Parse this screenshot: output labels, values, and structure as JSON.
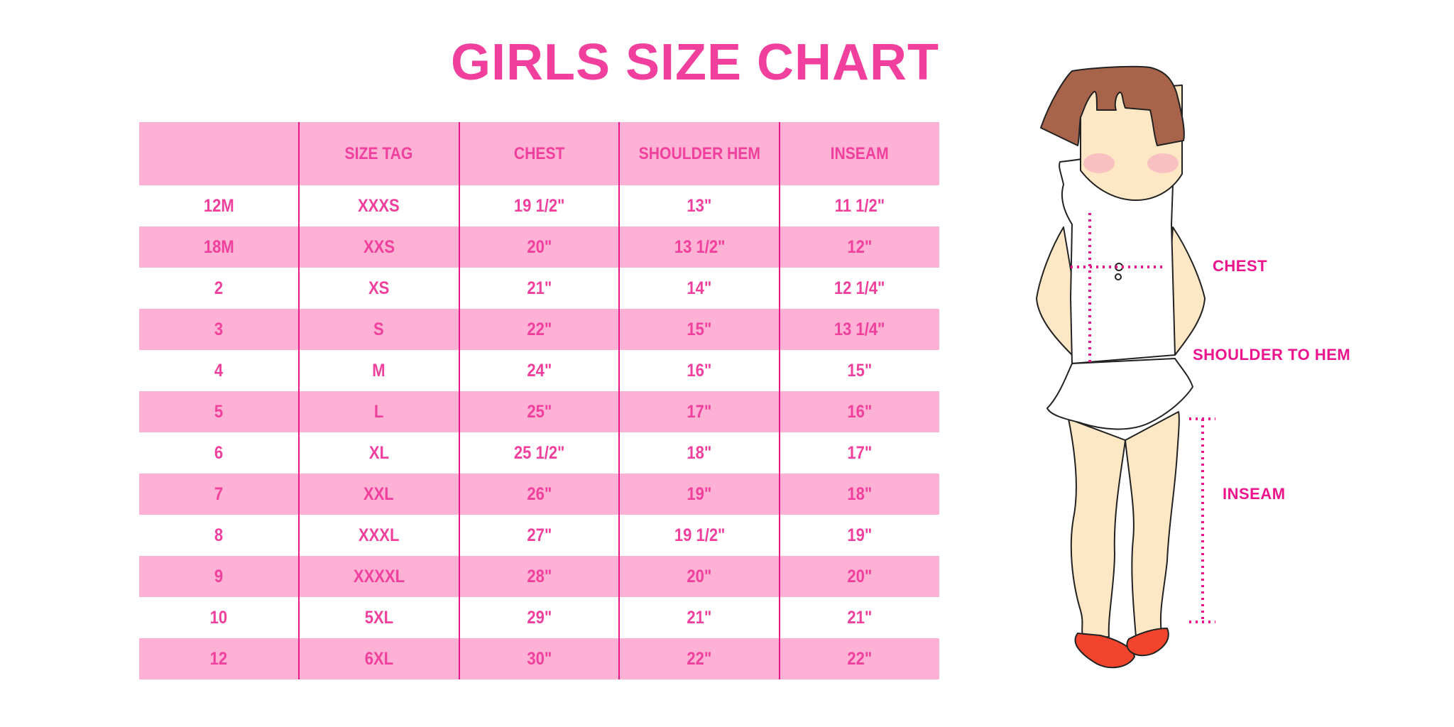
{
  "title": "GIRLS SIZE CHART",
  "table": {
    "headers": [
      "",
      "SIZE TAG",
      "CHEST",
      "SHOULDER HEM",
      "INSEAM"
    ],
    "rows": [
      [
        "12M",
        "XXXS",
        "19 1/2\"",
        "13\"",
        "11 1/2\""
      ],
      [
        "18M",
        "XXS",
        "20\"",
        "13 1/2\"",
        "12\""
      ],
      [
        "2",
        "XS",
        "21\"",
        "14\"",
        "12 1/4\""
      ],
      [
        "3",
        "S",
        "22\"",
        "15\"",
        "13 1/4\""
      ],
      [
        "4",
        "M",
        "24\"",
        "16\"",
        "15\""
      ],
      [
        "5",
        "L",
        "25\"",
        "17\"",
        "16\""
      ],
      [
        "6",
        "XL",
        "25 1/2\"",
        "18\"",
        "17\""
      ],
      [
        "7",
        "XXL",
        "26\"",
        "19\"",
        "18\""
      ],
      [
        "8",
        "XXXL",
        "27\"",
        "19 1/2\"",
        "19\""
      ],
      [
        "9",
        "XXXXL",
        "28\"",
        "20\"",
        "20\""
      ],
      [
        "10",
        "5XL",
        "29\"",
        "21\"",
        "21\""
      ],
      [
        "12",
        "6XL",
        "30\"",
        "22\"",
        "22\""
      ]
    ]
  },
  "figure": {
    "labels": {
      "chest": "CHEST",
      "shoulder": "SHOULDER TO HEM",
      "inseam": "INSEAM"
    }
  },
  "colors": {
    "accent": "#f03f9d",
    "row_pink": "#fdb1d4",
    "divider": "#e8178a",
    "hair": "#a7644a",
    "skin": "#fde7c5",
    "shoes": "#f2442c"
  }
}
